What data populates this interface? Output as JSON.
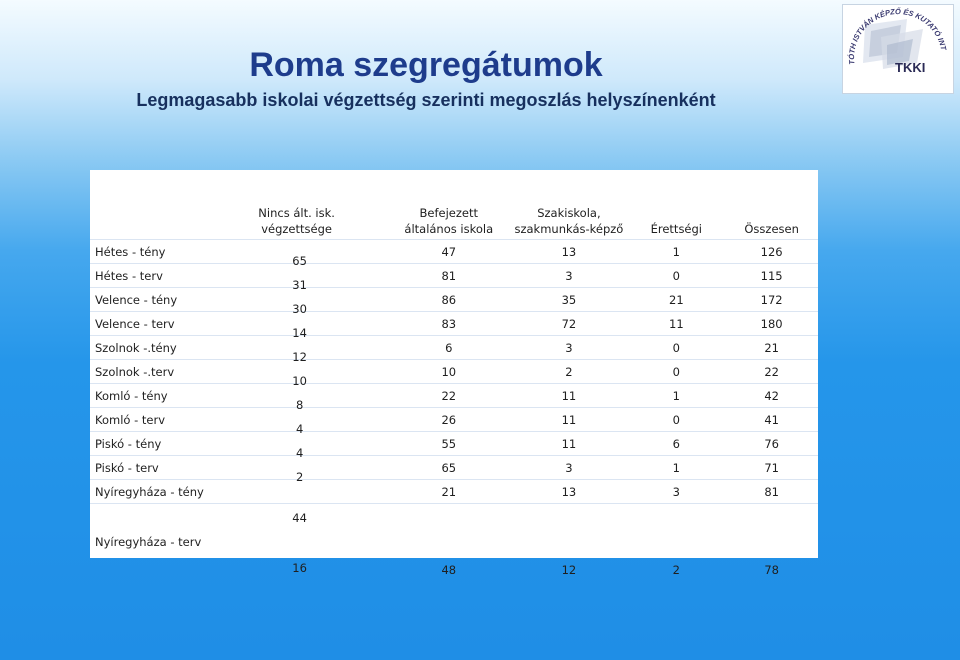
{
  "header": {
    "title": "Roma szegregátumok",
    "subtitle": "Legmagasabb iskolai végzettség szerinti megoszlás helyszínenként"
  },
  "logo": {
    "ring_text": "TÓTH ISTVÁN KÉPZŐ ÉS KUTATÓ INTÉZET",
    "text": "TKKI"
  },
  "table": {
    "columns": [
      "",
      "Nincs ált. isk. végzettsége",
      "Befejezett általános iskola",
      "Szakiskola, szakmunkás-képző",
      "Érettségi",
      "Összesen"
    ],
    "rows": [
      {
        "label": "Hétes - tény",
        "cells": [
          "65",
          "47",
          "13",
          "1",
          "126"
        ]
      },
      {
        "label": "Hétes - terv",
        "cells": [
          "31",
          "81",
          "3",
          "0",
          "115"
        ]
      },
      {
        "label": "Velence - tény",
        "cells": [
          "30",
          "86",
          "35",
          "21",
          "172"
        ]
      },
      {
        "label": "Velence - terv",
        "cells": [
          "14",
          "83",
          "72",
          "11",
          "180"
        ]
      },
      {
        "label": "Szolnok -.tény",
        "cells": [
          "12",
          "6",
          "3",
          "0",
          "21"
        ]
      },
      {
        "label": "Szolnok -.terv",
        "cells": [
          "10",
          "10",
          "2",
          "0",
          "22"
        ]
      },
      {
        "label": "Komló - tény",
        "cells": [
          "8",
          "22",
          "11",
          "1",
          "42"
        ]
      },
      {
        "label": "Komló - terv",
        "cells": [
          "4",
          "26",
          "11",
          "0",
          "41"
        ]
      },
      {
        "label": "Piskó - tény",
        "cells": [
          "4",
          "55",
          "11",
          "6",
          "76"
        ]
      },
      {
        "label": "Piskó - terv",
        "cells": [
          "2",
          "65",
          "3",
          "1",
          "71"
        ]
      },
      {
        "label": "Nyíregyháza - tény",
        "cells": [
          "44",
          "21",
          "13",
          "3",
          "81"
        ]
      },
      {
        "label": "Nyíregyháza - terv",
        "cells": [
          "16",
          "48",
          "12",
          "2",
          "78"
        ]
      }
    ]
  }
}
